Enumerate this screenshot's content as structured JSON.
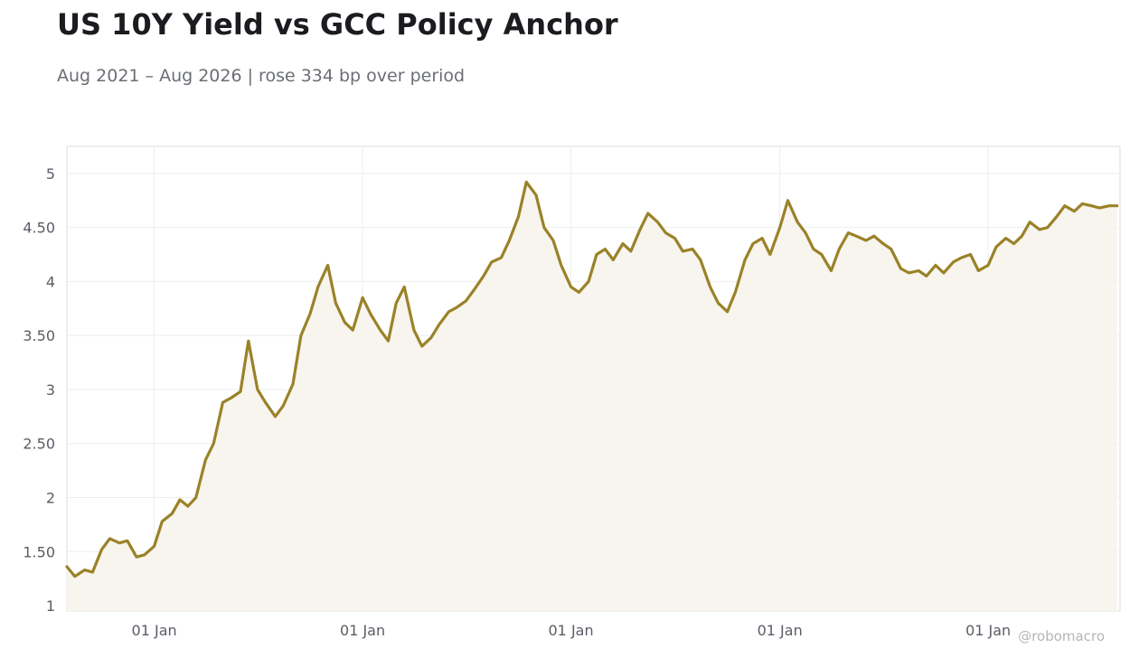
{
  "chart_data": {
    "type": "area",
    "title": "US 10Y Yield vs GCC Policy Anchor",
    "subtitle": "Aug 2021 – Aug 2026 | rose 334 bp over period",
    "xlabel": "",
    "ylabel": "",
    "x_range": [
      "2021-08-01",
      "2026-08-20"
    ],
    "ylim": [
      0.95,
      5.25
    ],
    "y_ticks": [
      1,
      1.5,
      2,
      2.5,
      3,
      3.5,
      4,
      4.5,
      5
    ],
    "y_tick_labels": [
      "1",
      "1.50",
      "2",
      "2.50",
      "3",
      "3.50",
      "4",
      "4.50",
      "5"
    ],
    "x_ticks": [
      "2022-01-01",
      "2023-01-01",
      "2024-01-01",
      "2025-01-01",
      "2026-01-01"
    ],
    "x_tick_labels": [
      "01 Jan",
      "01 Jan",
      "01 Jan",
      "01 Jan",
      "01 Jan"
    ],
    "grid": true,
    "legend": "none",
    "line_color": "#9a8228",
    "fill_color": "#f8f4ee",
    "series": [
      {
        "x": [
          "2021-08-01",
          "2021-08-15",
          "2021-09-01",
          "2021-09-15",
          "2021-10-01",
          "2021-10-15",
          "2021-11-01",
          "2021-11-15",
          "2021-12-01",
          "2021-12-15",
          "2022-01-01",
          "2022-01-15",
          "2022-02-01",
          "2022-02-15",
          "2022-03-01",
          "2022-03-15",
          "2022-04-01",
          "2022-04-15",
          "2022-05-01",
          "2022-05-15",
          "2022-06-01",
          "2022-06-15",
          "2022-07-01",
          "2022-07-15",
          "2022-08-01",
          "2022-08-15",
          "2022-09-01",
          "2022-09-15",
          "2022-10-01",
          "2022-10-15",
          "2022-11-01",
          "2022-11-15",
          "2022-12-01",
          "2022-12-15",
          "2023-01-01",
          "2023-01-15",
          "2023-02-01",
          "2023-02-15",
          "2023-03-01",
          "2023-03-15",
          "2023-04-01",
          "2023-04-15",
          "2023-05-01",
          "2023-05-15",
          "2023-06-01",
          "2023-06-15",
          "2023-07-01",
          "2023-07-15",
          "2023-08-01",
          "2023-08-15",
          "2023-09-01",
          "2023-09-15",
          "2023-10-01",
          "2023-10-15",
          "2023-11-01",
          "2023-11-15",
          "2023-12-01",
          "2023-12-15",
          "2024-01-01",
          "2024-01-15",
          "2024-02-01",
          "2024-02-15",
          "2024-03-01",
          "2024-03-15",
          "2024-04-01",
          "2024-04-15",
          "2024-05-01",
          "2024-05-15",
          "2024-06-01",
          "2024-06-15",
          "2024-07-01",
          "2024-07-15",
          "2024-08-01",
          "2024-08-15",
          "2024-09-01",
          "2024-09-15",
          "2024-10-01",
          "2024-10-15",
          "2024-11-01",
          "2024-11-15",
          "2024-12-01",
          "2024-12-15",
          "2025-01-01",
          "2025-01-15",
          "2025-02-01",
          "2025-02-15",
          "2025-03-01",
          "2025-03-15",
          "2025-04-01",
          "2025-04-15",
          "2025-05-01",
          "2025-05-15",
          "2025-06-01",
          "2025-06-15",
          "2025-07-01",
          "2025-07-15",
          "2025-08-01",
          "2025-08-15",
          "2025-09-01",
          "2025-09-15",
          "2025-10-01",
          "2025-10-15",
          "2025-11-01",
          "2025-11-15",
          "2025-12-01",
          "2025-12-15",
          "2026-01-01",
          "2026-01-15",
          "2026-02-01",
          "2026-02-15",
          "2026-03-01",
          "2026-03-15",
          "2026-04-01",
          "2026-04-15",
          "2026-05-01",
          "2026-05-15",
          "2026-06-01",
          "2026-06-15",
          "2026-07-01",
          "2026-07-15",
          "2026-08-01",
          "2026-08-15"
        ],
        "values": [
          1.36,
          1.27,
          1.33,
          1.31,
          1.52,
          1.62,
          1.58,
          1.6,
          1.45,
          1.47,
          1.55,
          1.78,
          1.85,
          1.98,
          1.92,
          2.0,
          2.35,
          2.5,
          2.88,
          2.92,
          2.98,
          3.45,
          3.0,
          2.88,
          2.75,
          2.85,
          3.05,
          3.5,
          3.7,
          3.95,
          4.15,
          3.8,
          3.62,
          3.55,
          3.85,
          3.7,
          3.55,
          3.45,
          3.8,
          3.95,
          3.55,
          3.4,
          3.48,
          3.6,
          3.72,
          3.76,
          3.82,
          3.92,
          4.05,
          4.18,
          4.22,
          4.38,
          4.6,
          4.92,
          4.8,
          4.5,
          4.38,
          4.15,
          3.95,
          3.9,
          4.0,
          4.25,
          4.3,
          4.2,
          4.35,
          4.28,
          4.48,
          4.63,
          4.55,
          4.45,
          4.4,
          4.28,
          4.3,
          4.2,
          3.95,
          3.8,
          3.72,
          3.9,
          4.2,
          4.35,
          4.4,
          4.25,
          4.5,
          4.75,
          4.55,
          4.45,
          4.3,
          4.25,
          4.1,
          4.3,
          4.45,
          4.42,
          4.38,
          4.42,
          4.35,
          4.3,
          4.12,
          4.08,
          4.1,
          4.05,
          4.15,
          4.08,
          4.18,
          4.22,
          4.25,
          4.1,
          4.15,
          4.32,
          4.4,
          4.35,
          4.42,
          4.55,
          4.48,
          4.5,
          4.6,
          4.7,
          4.65,
          4.72,
          4.7,
          4.68,
          4.7,
          4.7
        ]
      }
    ]
  },
  "watermark": "@robomacro"
}
